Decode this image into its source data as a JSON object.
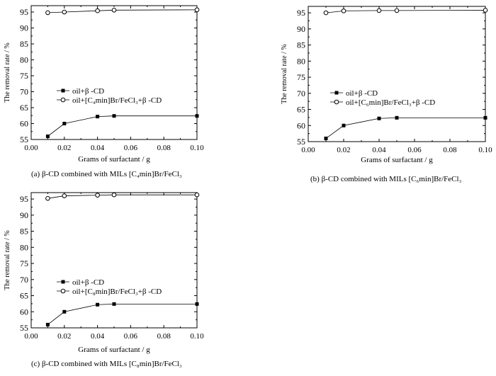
{
  "figure": {
    "captions": [
      "(a) β-CD combined with MILs [C₄min]Br/FeCl₃",
      "(b) β-CD combined with MILs [C₆min]Br/FeCl₃",
      "(c) β-CD combined with MILs [C₈min]Br/FeCl₃"
    ]
  },
  "chart_data": [
    {
      "type": "line",
      "panel": "a",
      "xlabel": "Grams of surfactant / g",
      "ylabel": "The removal rate / %",
      "xlim": [
        0.0,
        0.1
      ],
      "ylim": [
        55,
        97
      ],
      "xticks": [
        "0.00",
        "0.02",
        "0.04",
        "0.06",
        "0.08",
        "0.10"
      ],
      "yticks": [
        "55",
        "60",
        "65",
        "70",
        "75",
        "80",
        "85",
        "90",
        "95"
      ],
      "legend_position": "center-left",
      "x": [
        0.01,
        0.02,
        0.04,
        0.05,
        0.1
      ],
      "series": [
        {
          "name": "oil+β -CD",
          "marker": "filled-square",
          "values": [
            56.0,
            60.0,
            62.2,
            62.4,
            62.4
          ]
        },
        {
          "name": "oil+[C₄min]Br/FeCl₃+β -CD",
          "marker": "open-circle",
          "values": [
            94.8,
            95.0,
            95.4,
            95.6,
            95.7
          ]
        }
      ]
    },
    {
      "type": "line",
      "panel": "b",
      "xlabel": "Grams of surfactant / g",
      "ylabel": "The removal rate / %",
      "xlim": [
        0.0,
        0.1
      ],
      "ylim": [
        55,
        97
      ],
      "xticks": [
        "0.00",
        "0.02",
        "0.04",
        "0.06",
        "0.08",
        "0.10"
      ],
      "yticks": [
        "55",
        "60",
        "65",
        "70",
        "75",
        "80",
        "85",
        "90",
        "95"
      ],
      "legend_position": "center-left",
      "x": [
        0.01,
        0.02,
        0.04,
        0.05,
        0.1
      ],
      "series": [
        {
          "name": "oil+β -CD",
          "marker": "filled-square",
          "values": [
            56.0,
            60.0,
            62.2,
            62.4,
            62.4
          ]
        },
        {
          "name": "oil+[C₆min]Br/FeCl₃+β -CD",
          "marker": "open-circle",
          "values": [
            95.0,
            95.6,
            95.7,
            95.7,
            95.8
          ]
        }
      ]
    },
    {
      "type": "line",
      "panel": "c",
      "xlabel": "Grams of surfactant / g",
      "ylabel": "The removal rate / %",
      "xlim": [
        0.0,
        0.1
      ],
      "ylim": [
        55,
        97
      ],
      "xticks": [
        "0.00",
        "0.02",
        "0.04",
        "0.06",
        "0.08",
        "0.10"
      ],
      "yticks": [
        "55",
        "60",
        "65",
        "70",
        "75",
        "80",
        "85",
        "90",
        "95"
      ],
      "legend_position": "center-left",
      "x": [
        0.01,
        0.02,
        0.04,
        0.05,
        0.1
      ],
      "series": [
        {
          "name": "oil+β -CD",
          "marker": "filled-square",
          "values": [
            56.0,
            60.0,
            62.2,
            62.4,
            62.4
          ]
        },
        {
          "name": "oil+[C₈min]Br/FeCl₃+β -CD",
          "marker": "open-circle",
          "values": [
            95.2,
            96.0,
            96.2,
            96.3,
            96.3
          ]
        }
      ]
    }
  ]
}
